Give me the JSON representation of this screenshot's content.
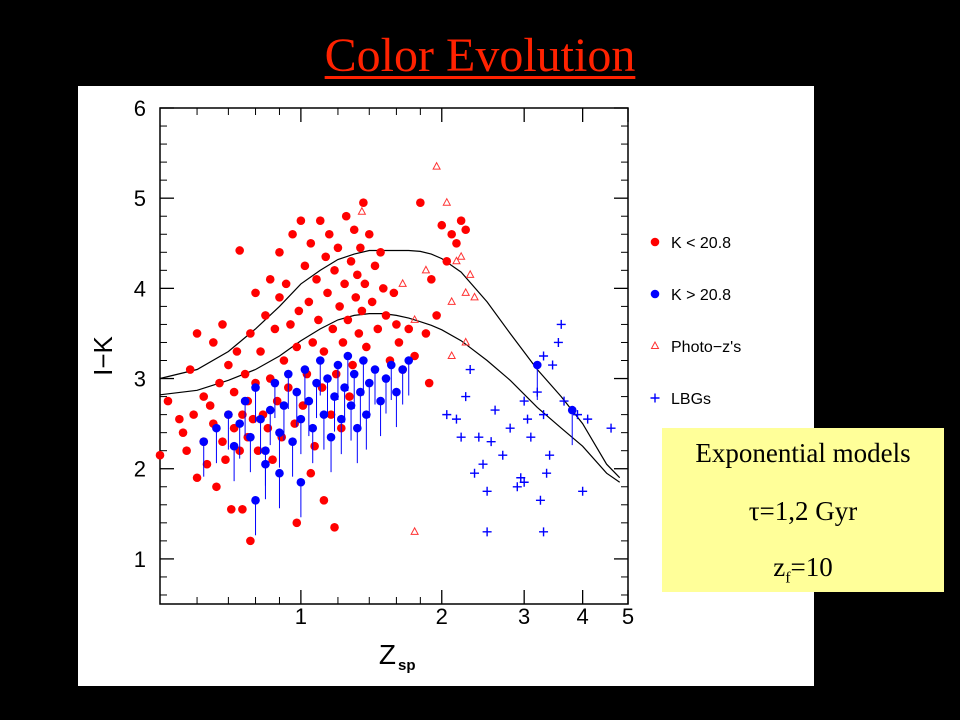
{
  "slide": {
    "title": "Color Evolution"
  },
  "note": {
    "line1": "Exponential models",
    "line2": "τ=1,2 Gyr",
    "line3_main": "z",
    "line3_sub": "f",
    "line3_rest": "=10"
  },
  "colors": {
    "title": "#ff2200",
    "k_bright": "#ff0000",
    "k_faint": "#0000ff",
    "photoz": "#ff3333",
    "lbg": "#0000ff",
    "note_bg": "#ffff99"
  },
  "chart_data": {
    "type": "scatter",
    "xlabel": "Z",
    "xlabel_sub": "sp",
    "ylabel": "I−K",
    "x_scale": "log",
    "xlim": [
      0.5,
      5.0
    ],
    "ylim": [
      0.5,
      6.0
    ],
    "x_ticks": [
      1,
      2,
      3,
      4,
      5
    ],
    "y_ticks": [
      1,
      2,
      3,
      4,
      5,
      6
    ],
    "legend": [
      {
        "label": "K < 20.8",
        "marker": "dot",
        "color": "#ff0000"
      },
      {
        "label": "K > 20.8",
        "marker": "dot",
        "color": "#0000ff"
      },
      {
        "label": "Photo−z's",
        "marker": "triangle",
        "color": "#ff3333"
      },
      {
        "label": "LBGs",
        "marker": "plus",
        "color": "#0000ff"
      }
    ],
    "legend_position": "right-outside",
    "models": [
      {
        "x": [
          0.5,
          0.6,
          0.7,
          0.8,
          0.9,
          1.0,
          1.1,
          1.2,
          1.3,
          1.4,
          1.5,
          1.6,
          1.7,
          1.8,
          1.9,
          2.0,
          2.2,
          2.5,
          2.8,
          3.2,
          3.6,
          4.0,
          4.5,
          4.8
        ],
        "y": [
          3.0,
          3.1,
          3.3,
          3.55,
          3.8,
          4.05,
          4.2,
          4.32,
          4.38,
          4.42,
          4.42,
          4.42,
          4.42,
          4.41,
          4.38,
          4.33,
          4.18,
          3.85,
          3.5,
          3.1,
          2.8,
          2.5,
          2.05,
          1.9
        ]
      },
      {
        "x": [
          0.5,
          0.6,
          0.7,
          0.8,
          0.9,
          1.0,
          1.1,
          1.2,
          1.3,
          1.4,
          1.5,
          1.6,
          1.7,
          1.8,
          1.9,
          2.0,
          2.2,
          2.5,
          2.8,
          3.2,
          3.6,
          4.0,
          4.5,
          4.8
        ],
        "y": [
          2.82,
          2.87,
          2.98,
          3.1,
          3.25,
          3.42,
          3.55,
          3.65,
          3.7,
          3.72,
          3.72,
          3.7,
          3.67,
          3.63,
          3.59,
          3.54,
          3.42,
          3.2,
          2.98,
          2.68,
          2.45,
          2.25,
          1.95,
          1.85
        ]
      }
    ],
    "series": [
      {
        "name": "K < 20.8",
        "marker": "dot",
        "points": [
          [
            0.5,
            2.15
          ],
          [
            0.52,
            2.75
          ],
          [
            0.55,
            2.55
          ],
          [
            0.56,
            2.4
          ],
          [
            0.57,
            2.2
          ],
          [
            0.58,
            3.1
          ],
          [
            0.59,
            2.6
          ],
          [
            0.6,
            1.9
          ],
          [
            0.6,
            3.5
          ],
          [
            0.62,
            2.8
          ],
          [
            0.62,
            2.3
          ],
          [
            0.63,
            2.05
          ],
          [
            0.64,
            2.7
          ],
          [
            0.65,
            3.4
          ],
          [
            0.65,
            2.5
          ],
          [
            0.66,
            1.8
          ],
          [
            0.67,
            2.95
          ],
          [
            0.68,
            2.3
          ],
          [
            0.68,
            3.6
          ],
          [
            0.69,
            2.1
          ],
          [
            0.7,
            2.6
          ],
          [
            0.7,
            3.15
          ],
          [
            0.71,
            1.55
          ],
          [
            0.72,
            2.45
          ],
          [
            0.72,
            2.85
          ],
          [
            0.73,
            3.3
          ],
          [
            0.74,
            2.2
          ],
          [
            0.74,
            4.42
          ],
          [
            0.75,
            2.6
          ],
          [
            0.75,
            1.55
          ],
          [
            0.76,
            3.05
          ],
          [
            0.77,
            2.35
          ],
          [
            0.77,
            2.75
          ],
          [
            0.78,
            3.5
          ],
          [
            0.78,
            1.2
          ],
          [
            0.79,
            2.55
          ],
          [
            0.8,
            2.95
          ],
          [
            0.8,
            3.95
          ],
          [
            0.81,
            2.2
          ],
          [
            0.82,
            3.3
          ],
          [
            0.83,
            2.6
          ],
          [
            0.84,
            3.7
          ],
          [
            0.85,
            2.45
          ],
          [
            0.86,
            4.1
          ],
          [
            0.86,
            3.0
          ],
          [
            0.87,
            2.1
          ],
          [
            0.88,
            3.55
          ],
          [
            0.89,
            2.75
          ],
          [
            0.9,
            3.9
          ],
          [
            0.9,
            4.4
          ],
          [
            0.91,
            2.35
          ],
          [
            0.92,
            3.2
          ],
          [
            0.93,
            4.05
          ],
          [
            0.94,
            2.9
          ],
          [
            0.95,
            3.6
          ],
          [
            0.96,
            4.6
          ],
          [
            0.97,
            2.5
          ],
          [
            0.98,
            3.35
          ],
          [
            0.99,
            3.75
          ],
          [
            1.0,
            4.75
          ],
          [
            1.01,
            2.7
          ],
          [
            1.02,
            4.25
          ],
          [
            1.03,
            3.05
          ],
          [
            1.04,
            3.85
          ],
          [
            1.05,
            4.5
          ],
          [
            1.06,
            3.4
          ],
          [
            1.07,
            2.25
          ],
          [
            1.08,
            4.1
          ],
          [
            1.09,
            3.65
          ],
          [
            1.1,
            4.75
          ],
          [
            1.11,
            2.9
          ],
          [
            1.12,
            3.3
          ],
          [
            1.13,
            4.35
          ],
          [
            1.14,
            3.95
          ],
          [
            1.15,
            4.6
          ],
          [
            1.16,
            2.6
          ],
          [
            1.17,
            3.55
          ],
          [
            1.18,
            4.2
          ],
          [
            1.19,
            3.05
          ],
          [
            1.2,
            4.45
          ],
          [
            1.21,
            3.8
          ],
          [
            1.22,
            2.45
          ],
          [
            1.23,
            3.4
          ],
          [
            1.24,
            4.05
          ],
          [
            1.25,
            4.8
          ],
          [
            1.26,
            3.65
          ],
          [
            1.27,
            2.8
          ],
          [
            1.28,
            4.3
          ],
          [
            1.29,
            3.15
          ],
          [
            1.3,
            4.65
          ],
          [
            1.31,
            3.9
          ],
          [
            1.32,
            4.15
          ],
          [
            1.33,
            3.5
          ],
          [
            1.34,
            4.45
          ],
          [
            1.35,
            3.75
          ],
          [
            1.36,
            4.95
          ],
          [
            1.37,
            4.05
          ],
          [
            1.38,
            3.35
          ],
          [
            1.4,
            4.6
          ],
          [
            1.42,
            3.85
          ],
          [
            1.44,
            4.25
          ],
          [
            1.46,
            3.55
          ],
          [
            1.48,
            4.4
          ],
          [
            1.5,
            4.0
          ],
          [
            1.52,
            3.7
          ],
          [
            1.55,
            3.2
          ],
          [
            1.58,
            3.95
          ],
          [
            1.6,
            3.6
          ],
          [
            1.62,
            3.4
          ],
          [
            1.65,
            3.1
          ],
          [
            1.7,
            3.55
          ],
          [
            1.75,
            3.25
          ],
          [
            1.8,
            4.95
          ],
          [
            1.85,
            3.5
          ],
          [
            1.88,
            2.95
          ],
          [
            1.9,
            4.1
          ],
          [
            1.95,
            3.7
          ],
          [
            2.0,
            4.7
          ],
          [
            2.05,
            4.3
          ],
          [
            2.1,
            4.6
          ],
          [
            2.15,
            4.5
          ],
          [
            2.2,
            4.75
          ],
          [
            2.25,
            4.65
          ],
          [
            1.12,
            1.65
          ],
          [
            0.98,
            1.4
          ],
          [
            1.05,
            1.95
          ],
          [
            1.18,
            1.35
          ]
        ]
      },
      {
        "name": "K > 20.8",
        "marker": "dot",
        "points": [
          [
            0.62,
            2.3
          ],
          [
            0.66,
            2.45
          ],
          [
            0.7,
            2.6
          ],
          [
            0.72,
            2.25
          ],
          [
            0.74,
            2.5
          ],
          [
            0.76,
            2.75
          ],
          [
            0.78,
            2.35
          ],
          [
            0.8,
            2.9
          ],
          [
            0.82,
            2.55
          ],
          [
            0.84,
            2.2
          ],
          [
            0.86,
            2.65
          ],
          [
            0.88,
            2.95
          ],
          [
            0.9,
            2.4
          ],
          [
            0.92,
            2.7
          ],
          [
            0.94,
            3.05
          ],
          [
            0.96,
            2.3
          ],
          [
            0.98,
            2.85
          ],
          [
            1.0,
            2.55
          ],
          [
            1.02,
            3.1
          ],
          [
            1.04,
            2.75
          ],
          [
            1.06,
            2.45
          ],
          [
            1.08,
            2.95
          ],
          [
            1.1,
            3.2
          ],
          [
            1.12,
            2.6
          ],
          [
            1.14,
            3.0
          ],
          [
            1.16,
            2.35
          ],
          [
            1.18,
            2.8
          ],
          [
            1.2,
            3.15
          ],
          [
            1.22,
            2.55
          ],
          [
            1.24,
            2.9
          ],
          [
            1.26,
            3.25
          ],
          [
            1.28,
            2.7
          ],
          [
            1.3,
            3.05
          ],
          [
            1.32,
            2.45
          ],
          [
            1.34,
            2.85
          ],
          [
            1.36,
            3.2
          ],
          [
            1.38,
            2.6
          ],
          [
            1.4,
            2.95
          ],
          [
            1.44,
            3.1
          ],
          [
            1.48,
            2.75
          ],
          [
            1.52,
            3.0
          ],
          [
            1.56,
            3.15
          ],
          [
            1.6,
            2.85
          ],
          [
            1.65,
            3.1
          ],
          [
            1.7,
            3.2
          ],
          [
            0.8,
            1.65
          ],
          [
            0.84,
            2.05
          ],
          [
            0.9,
            1.95
          ],
          [
            1.0,
            1.85
          ],
          [
            3.2,
            3.15
          ],
          [
            3.8,
            2.65
          ]
        ]
      },
      {
        "name": "Photo−z's",
        "marker": "triangle",
        "points": [
          [
            1.35,
            4.85
          ],
          [
            1.65,
            4.05
          ],
          [
            1.75,
            3.65
          ],
          [
            1.85,
            4.2
          ],
          [
            1.95,
            5.35
          ],
          [
            2.05,
            4.95
          ],
          [
            2.1,
            3.85
          ],
          [
            2.15,
            4.3
          ],
          [
            2.2,
            4.35
          ],
          [
            2.25,
            3.95
          ],
          [
            2.25,
            3.4
          ],
          [
            2.3,
            4.15
          ],
          [
            2.35,
            3.9
          ],
          [
            2.1,
            3.25
          ],
          [
            1.75,
            1.3
          ]
        ]
      },
      {
        "name": "LBGs",
        "marker": "plus",
        "points": [
          [
            2.05,
            2.6
          ],
          [
            2.15,
            2.55
          ],
          [
            2.2,
            2.35
          ],
          [
            2.25,
            2.8
          ],
          [
            2.3,
            3.1
          ],
          [
            2.35,
            1.95
          ],
          [
            2.4,
            2.35
          ],
          [
            2.45,
            2.05
          ],
          [
            2.5,
            1.75
          ],
          [
            2.5,
            1.3
          ],
          [
            2.55,
            2.3
          ],
          [
            2.6,
            2.65
          ],
          [
            2.7,
            2.15
          ],
          [
            2.8,
            2.45
          ],
          [
            2.9,
            1.8
          ],
          [
            2.95,
            1.9
          ],
          [
            3.0,
            2.75
          ],
          [
            3.05,
            2.55
          ],
          [
            3.1,
            2.35
          ],
          [
            3.2,
            2.85
          ],
          [
            3.3,
            2.6
          ],
          [
            3.35,
            1.95
          ],
          [
            3.4,
            2.15
          ],
          [
            3.45,
            3.15
          ],
          [
            3.55,
            3.4
          ],
          [
            3.3,
            3.25
          ],
          [
            3.25,
            1.65
          ],
          [
            3.3,
            1.3
          ],
          [
            3.6,
            3.6
          ],
          [
            3.9,
            2.6
          ],
          [
            4.0,
            1.75
          ],
          [
            4.1,
            2.55
          ],
          [
            4.6,
            2.45
          ],
          [
            3.0,
            1.85
          ],
          [
            3.65,
            2.75
          ]
        ]
      }
    ]
  }
}
